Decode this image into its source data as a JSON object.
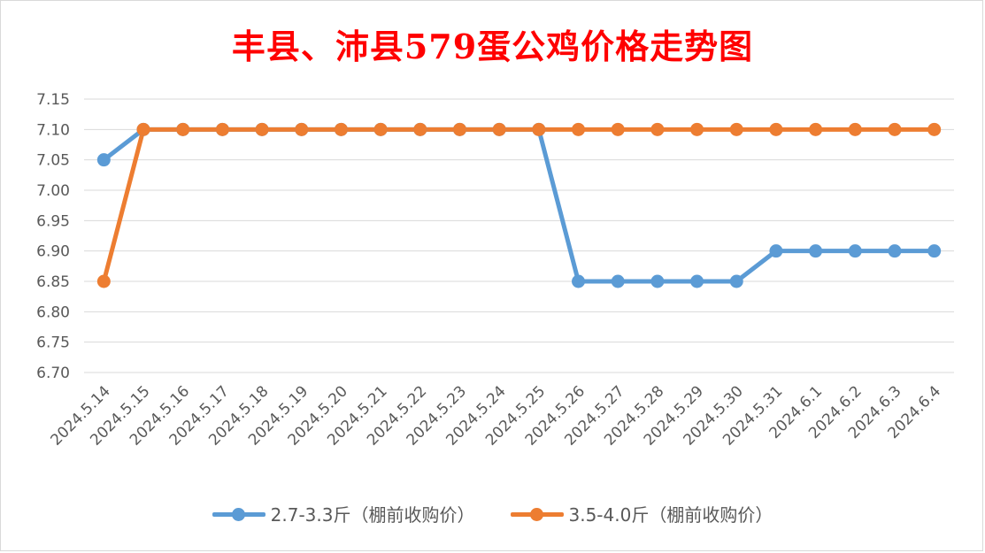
{
  "chart_data": {
    "type": "line",
    "title": "丰县、沛县579蛋公鸡价格走势图",
    "categories": [
      "2024.5.14",
      "2024.5.15",
      "2024.5.16",
      "2024.5.17",
      "2024.5.18",
      "2024.5.19",
      "2024.5.20",
      "2024.5.21",
      "2024.5.22",
      "2024.5.23",
      "2024.5.24",
      "2024.5.25",
      "2024.5.26",
      "2024.5.27",
      "2024.5.28",
      "2024.5.29",
      "2024.5.30",
      "2024.5.31",
      "2024.6.1",
      "2024.6.2",
      "2024.6.3",
      "2024.6.4"
    ],
    "series": [
      {
        "name": "2.7-3.3斤（棚前收购价）",
        "color": "#5b9bd5",
        "values": [
          7.05,
          7.1,
          7.1,
          7.1,
          7.1,
          7.1,
          7.1,
          7.1,
          7.1,
          7.1,
          7.1,
          7.1,
          6.85,
          6.85,
          6.85,
          6.85,
          6.85,
          6.9,
          6.9,
          6.9,
          6.9,
          6.9
        ]
      },
      {
        "name": "3.5-4.0斤（棚前收购价）",
        "color": "#ed7d31",
        "values": [
          6.85,
          7.1,
          7.1,
          7.1,
          7.1,
          7.1,
          7.1,
          7.1,
          7.1,
          7.1,
          7.1,
          7.1,
          7.1,
          7.1,
          7.1,
          7.1,
          7.1,
          7.1,
          7.1,
          7.1,
          7.1,
          7.1
        ]
      }
    ],
    "yticks": [
      "7.15",
      "7.10",
      "7.05",
      "7.00",
      "6.95",
      "6.90",
      "6.85",
      "6.80",
      "6.75",
      "6.70"
    ],
    "ylim": [
      6.7,
      7.15
    ],
    "grid": true,
    "legend_position": "bottom"
  }
}
